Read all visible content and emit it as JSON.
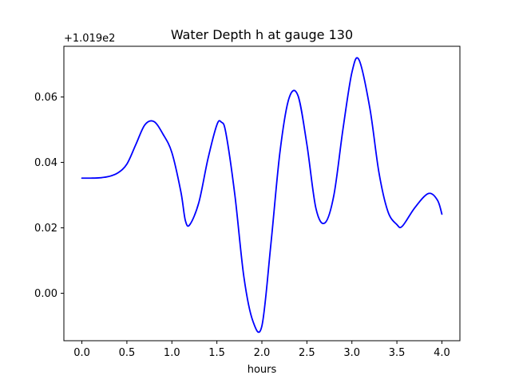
{
  "chart_data": {
    "type": "line",
    "title": "Water Depth h at gauge 130",
    "xlabel": "hours",
    "ylabel": "",
    "y_offset_label": "+1.019e2",
    "xlim": [
      -0.2,
      4.2
    ],
    "ylim": [
      -0.0145,
      0.0755
    ],
    "x_ticks": [
      0.0,
      0.5,
      1.0,
      1.5,
      2.0,
      2.5,
      3.0,
      3.5,
      4.0
    ],
    "x_tick_labels": [
      "0.0",
      "0.5",
      "1.0",
      "1.5",
      "2.0",
      "2.5",
      "3.0",
      "3.5",
      "4.0"
    ],
    "y_ticks": [
      0.0,
      0.02,
      0.04,
      0.06
    ],
    "y_tick_labels": [
      "0.00",
      "0.02",
      "0.04",
      "0.06"
    ],
    "grid": false,
    "series": [
      {
        "color": "#0000ff",
        "x": [
          0.0,
          0.1,
          0.2,
          0.3,
          0.4,
          0.5,
          0.6,
          0.7,
          0.8,
          0.9,
          1.0,
          1.1,
          1.15,
          1.2,
          1.3,
          1.4,
          1.5,
          1.55,
          1.6,
          1.7,
          1.8,
          1.9,
          2.0,
          2.1,
          2.2,
          2.3,
          2.4,
          2.5,
          2.6,
          2.7,
          2.8,
          2.9,
          3.0,
          3.08,
          3.2,
          3.3,
          3.4,
          3.5,
          3.56,
          3.7,
          3.85,
          3.95,
          4.0
        ],
        "y": [
          0.0352,
          0.0352,
          0.0353,
          0.0357,
          0.0368,
          0.0395,
          0.0455,
          0.0515,
          0.0525,
          0.0487,
          0.043,
          0.031,
          0.0222,
          0.021,
          0.0278,
          0.041,
          0.0515,
          0.0523,
          0.049,
          0.03,
          0.005,
          -0.0085,
          -0.01,
          0.015,
          0.043,
          0.0595,
          0.0605,
          0.0455,
          0.026,
          0.0215,
          0.03,
          0.05,
          0.0675,
          0.0713,
          0.0565,
          0.037,
          0.025,
          0.021,
          0.0205,
          0.0262,
          0.0305,
          0.0285,
          0.0242
        ]
      }
    ]
  }
}
